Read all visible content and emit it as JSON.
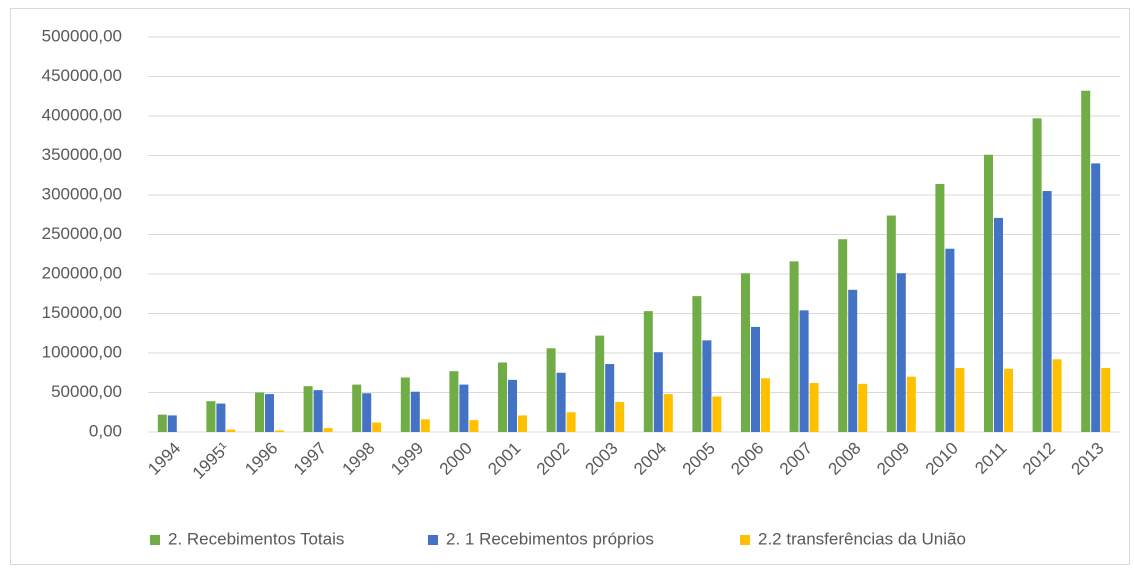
{
  "chart_data": {
    "type": "bar",
    "categories": [
      "1994",
      "1995¹",
      "1996",
      "1997",
      "1998",
      "1999",
      "2000",
      "2001",
      "2002",
      "2003",
      "2004",
      "2005",
      "2006",
      "2007",
      "2008",
      "2009",
      "2010",
      "2011",
      "2012",
      "2013"
    ],
    "series": [
      {
        "name": "2. Recebimentos Totais",
        "color": "#70ad47",
        "values": [
          22000,
          39000,
          50000,
          58000,
          60000,
          69000,
          77000,
          88000,
          106000,
          122000,
          153000,
          172000,
          201000,
          216000,
          244000,
          274000,
          314000,
          351000,
          397000,
          432000
        ]
      },
      {
        "name": "2. 1 Recebimentos próprios",
        "color": "#4472c4",
        "values": [
          21000,
          36000,
          48000,
          53000,
          49000,
          51000,
          60000,
          66000,
          75000,
          86000,
          101000,
          116000,
          133000,
          154000,
          180000,
          201000,
          232000,
          271000,
          305000,
          340000
        ]
      },
      {
        "name": "2.2 transferências da União",
        "color": "#ffc000",
        "values": [
          0,
          3000,
          2000,
          5000,
          12000,
          16000,
          15000,
          21000,
          25000,
          38000,
          48000,
          45000,
          68000,
          62000,
          61000,
          70000,
          81000,
          80000,
          92000,
          81000
        ]
      }
    ],
    "ylim": [
      0,
      500000
    ],
    "yticks": [
      {
        "value": 0,
        "label": "0,00"
      },
      {
        "value": 50000,
        "label": "50000,00"
      },
      {
        "value": 100000,
        "label": "100000,00"
      },
      {
        "value": 150000,
        "label": "150000,00"
      },
      {
        "value": 200000,
        "label": "200000,00"
      },
      {
        "value": 250000,
        "label": "250000,00"
      },
      {
        "value": 300000,
        "label": "300000,00"
      },
      {
        "value": 350000,
        "label": "350000,00"
      },
      {
        "value": 400000,
        "label": "400000,00"
      },
      {
        "value": 450000,
        "label": "450000,00"
      },
      {
        "value": 500000,
        "label": "500000,00"
      }
    ],
    "grid": true,
    "legend": "bottom"
  }
}
